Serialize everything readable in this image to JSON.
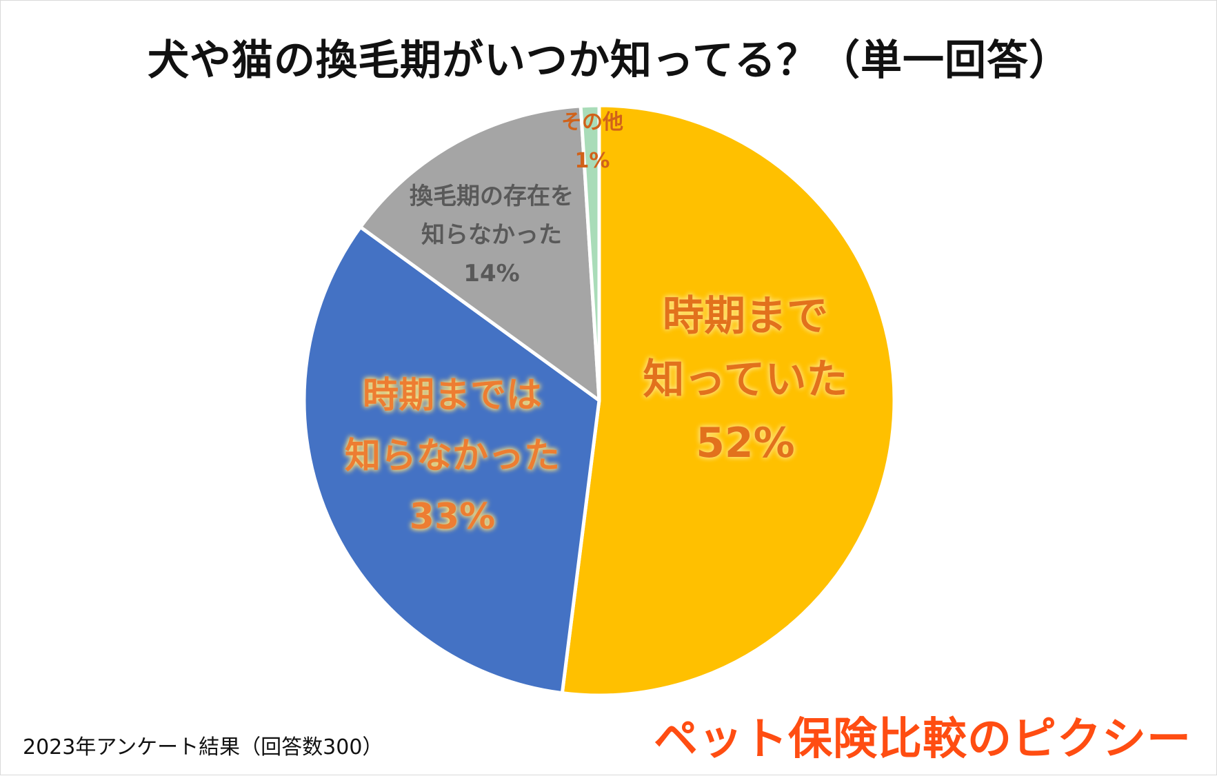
{
  "title": "犬や猫の換毛期がいつか知ってる？（単一回答）",
  "footer": "2023年アンケート結果（回答数300）",
  "brand": "ペット保険比較のピクシー",
  "colors": {
    "known": "#ffc000",
    "not_known_timing": "#4472c4",
    "not_known_existence": "#a5a5a5",
    "other": "#a9dcb8"
  },
  "chart_data": {
    "type": "pie",
    "title": "犬や猫の換毛期がいつか知ってる？（単一回答）",
    "start": "12 o'clock, clockwise",
    "slices": [
      {
        "key": "known",
        "lines": [
          "時期まで",
          "知っていた"
        ],
        "value": 52,
        "pct_label": "52%"
      },
      {
        "key": "not_known_timing",
        "lines": [
          "時期までは",
          "知らなかった"
        ],
        "value": 33,
        "pct_label": "33%"
      },
      {
        "key": "not_known_existence",
        "lines": [
          "換毛期の存在を",
          "知らなかった"
        ],
        "value": 14,
        "pct_label": "14%"
      },
      {
        "key": "other",
        "lines": [
          "その他"
        ],
        "value": 1,
        "pct_label": "1%"
      }
    ]
  }
}
